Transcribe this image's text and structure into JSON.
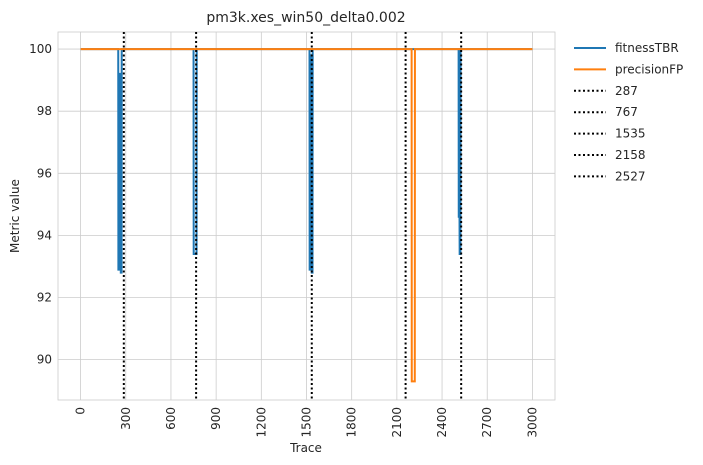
{
  "chart_data": {
    "type": "line",
    "title": "pm3k.xes_win50_delta0.002",
    "xlabel": "Trace",
    "ylabel": "Metric value",
    "xlim": [
      -150,
      3150
    ],
    "ylim": [
      88.7,
      100.55
    ],
    "xticks": [
      0,
      300,
      600,
      900,
      1200,
      1500,
      1800,
      2100,
      2400,
      2700,
      3000
    ],
    "yticks": [
      90,
      92,
      94,
      96,
      98,
      100
    ],
    "grid": true,
    "legend_position": "outside-top-right",
    "series": [
      {
        "name": "fitnessTBR",
        "color": "#1f77b4",
        "points": [
          [
            0,
            100
          ],
          [
            250,
            100
          ],
          [
            251,
            92.9
          ],
          [
            262,
            92.9
          ],
          [
            263,
            99.2
          ],
          [
            266,
            99.2
          ],
          [
            267,
            92.8
          ],
          [
            272,
            92.8
          ],
          [
            273,
            100
          ],
          [
            750,
            100
          ],
          [
            751,
            93.4
          ],
          [
            770,
            93.4
          ],
          [
            771,
            100
          ],
          [
            1520,
            100
          ],
          [
            1521,
            92.9
          ],
          [
            1530,
            92.9
          ],
          [
            1531,
            99.8
          ],
          [
            1534,
            99.8
          ],
          [
            1535,
            92.8
          ],
          [
            1540,
            92.8
          ],
          [
            1541,
            100
          ],
          [
            2510,
            100
          ],
          [
            2511,
            94.6
          ],
          [
            2516,
            94.6
          ],
          [
            2517,
            93.4
          ],
          [
            2522,
            93.4
          ],
          [
            2523,
            100
          ],
          [
            3000,
            100
          ]
        ]
      },
      {
        "name": "precisionFP",
        "color": "#ff7f0e",
        "points": [
          [
            0,
            100
          ],
          [
            2198,
            100
          ],
          [
            2199,
            89.3
          ],
          [
            2219,
            89.3
          ],
          [
            2220,
            100
          ],
          [
            3000,
            100
          ]
        ]
      }
    ],
    "vlines": [
      {
        "name": "287",
        "x": 287,
        "color": "#000000"
      },
      {
        "name": "767",
        "x": 767,
        "color": "#000000"
      },
      {
        "name": "1535",
        "x": 1535,
        "color": "#000000"
      },
      {
        "name": "2158",
        "x": 2158,
        "color": "#000000"
      },
      {
        "name": "2527",
        "x": 2527,
        "color": "#000000"
      }
    ]
  }
}
